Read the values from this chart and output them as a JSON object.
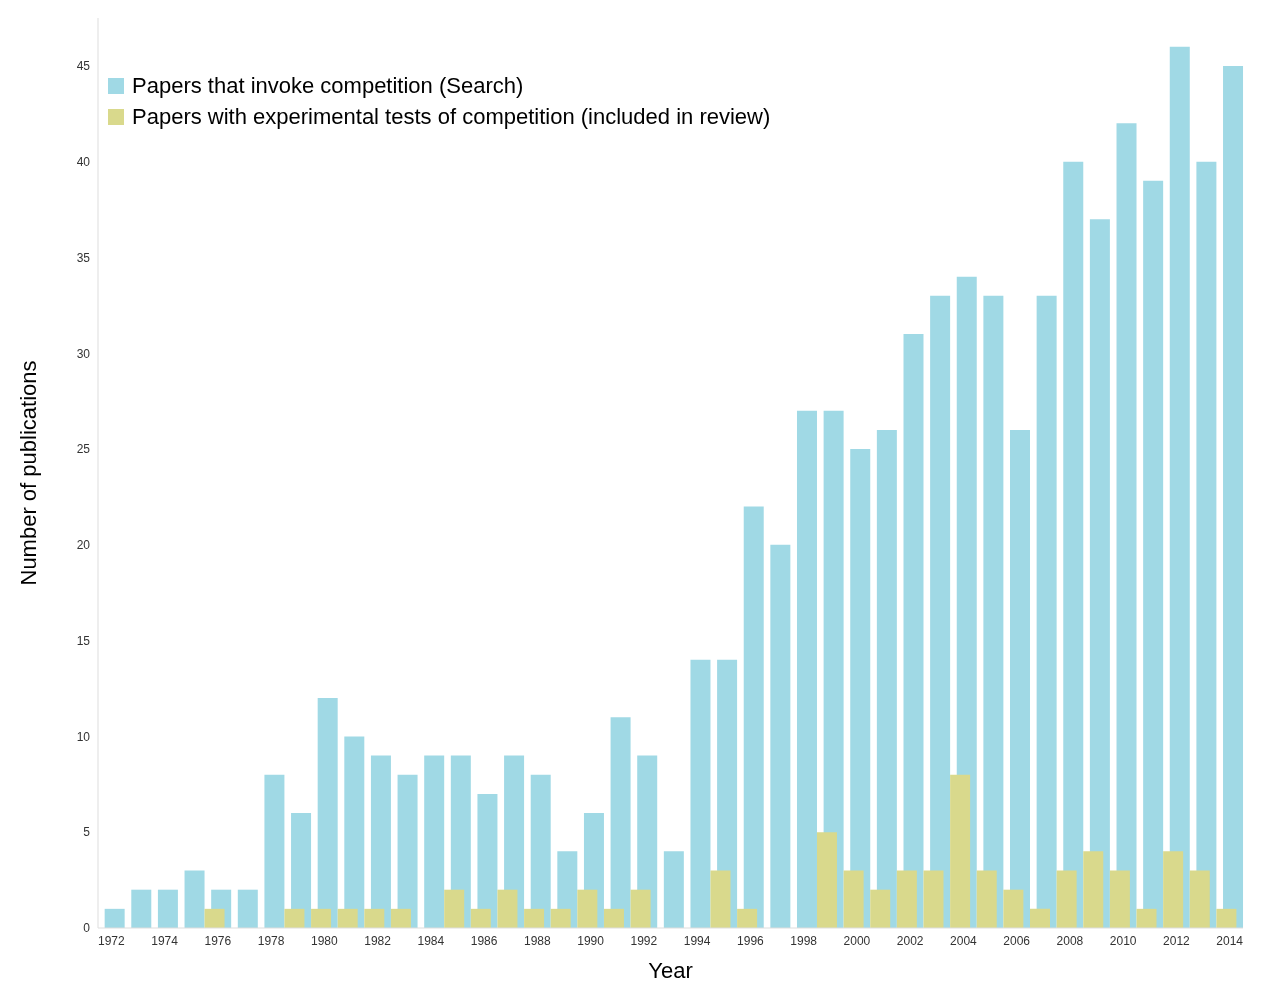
{
  "chart_data": {
    "type": "bar",
    "xlabel": "Year",
    "ylabel": "Number of publications",
    "categories": [
      "1972",
      null,
      "1974",
      null,
      "1976",
      null,
      "1978",
      null,
      "1980",
      null,
      "1982",
      null,
      "1984",
      null,
      "1986",
      null,
      "1988",
      null,
      "1990",
      null,
      "1992",
      null,
      "1994",
      null,
      "1996",
      null,
      "1998",
      null,
      "2000",
      null,
      "2002",
      null,
      "2004",
      null,
      "2006",
      null,
      "2008",
      null,
      "2010",
      null,
      "2012",
      null,
      "2014"
    ],
    "series": [
      {
        "name": "Papers that invoke competition (Search)",
        "color": "#a0d9e5",
        "values": [
          1,
          2,
          2,
          3,
          2,
          2,
          8,
          6,
          12,
          10,
          9,
          8,
          9,
          9,
          7,
          9,
          8,
          4,
          6,
          11,
          9,
          4,
          14,
          14,
          22,
          20,
          27,
          27,
          25,
          26,
          31,
          33,
          34,
          33,
          26,
          33,
          40,
          37,
          42,
          39,
          46,
          40,
          45
        ]
      },
      {
        "name": "Papers with experimental tests of competition (included in review)",
        "color": "#d9d98c",
        "values": [
          0,
          0,
          0,
          0,
          1,
          0,
          0,
          1,
          1,
          1,
          1,
          1,
          0,
          2,
          1,
          2,
          1,
          1,
          2,
          1,
          2,
          0,
          0,
          3,
          1,
          0,
          0,
          5,
          3,
          2,
          3,
          3,
          8,
          3,
          2,
          1,
          3,
          4,
          3,
          1,
          4,
          3,
          1
        ]
      }
    ],
    "ylim": [
      0,
      47.5
    ],
    "yticks": [
      0,
      5,
      10,
      15,
      20,
      25,
      30,
      35,
      40,
      45
    ],
    "grid": false,
    "legend": "top left"
  }
}
